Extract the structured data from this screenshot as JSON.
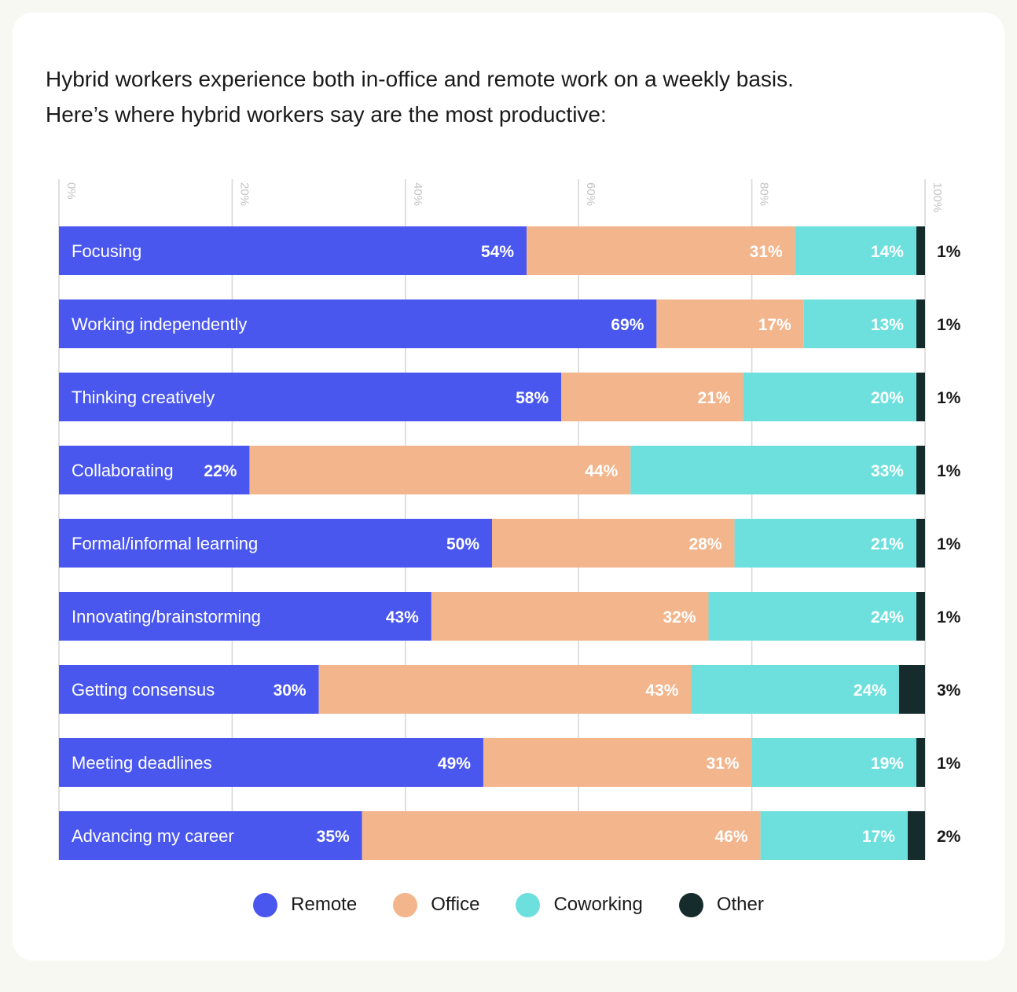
{
  "title_lines": [
    "Hybrid workers experience both in-office and remote work on a weekly basis.",
    "Here’s where hybrid workers say are the most productive:"
  ],
  "colors": {
    "remote": "#4a57ee",
    "office": "#f3b58c",
    "coworking": "#6de0de",
    "other": "#152b2c",
    "grid": "#d6d6d6",
    "tick": "#c4c4c4",
    "text": "#1a1a1a"
  },
  "chart_data": {
    "type": "bar",
    "orientation": "horizontal",
    "stacked": true,
    "title": "Hybrid workers experience both in-office and remote work on a weekly basis. Here’s where hybrid workers say are the most productive:",
    "x_ticks": [
      "0%",
      "20%",
      "40%",
      "60%",
      "80%",
      "100%"
    ],
    "xlim": [
      0,
      100
    ],
    "categories": [
      "Focusing",
      "Working independently",
      "Thinking creatively",
      "Collaborating",
      "Formal/informal learning",
      "Innovating/brainstorming",
      "Getting consensus",
      "Meeting deadlines",
      "Advancing my career"
    ],
    "series": [
      {
        "name": "Remote",
        "key": "remote",
        "values": [
          54,
          69,
          58,
          22,
          50,
          43,
          30,
          49,
          35
        ]
      },
      {
        "name": "Office",
        "key": "office",
        "values": [
          31,
          17,
          21,
          44,
          28,
          32,
          43,
          31,
          46
        ]
      },
      {
        "name": "Coworking",
        "key": "coworking",
        "values": [
          14,
          13,
          20,
          33,
          21,
          24,
          24,
          19,
          17
        ]
      },
      {
        "name": "Other",
        "key": "other",
        "values": [
          1,
          1,
          1,
          1,
          1,
          1,
          3,
          1,
          2
        ]
      }
    ],
    "value_suffix": "%",
    "legend_position": "bottom-center",
    "grid": true
  },
  "legend": [
    {
      "label": "Remote",
      "key": "remote"
    },
    {
      "label": "Office",
      "key": "office"
    },
    {
      "label": "Coworking",
      "key": "coworking"
    },
    {
      "label": "Other",
      "key": "other"
    }
  ]
}
